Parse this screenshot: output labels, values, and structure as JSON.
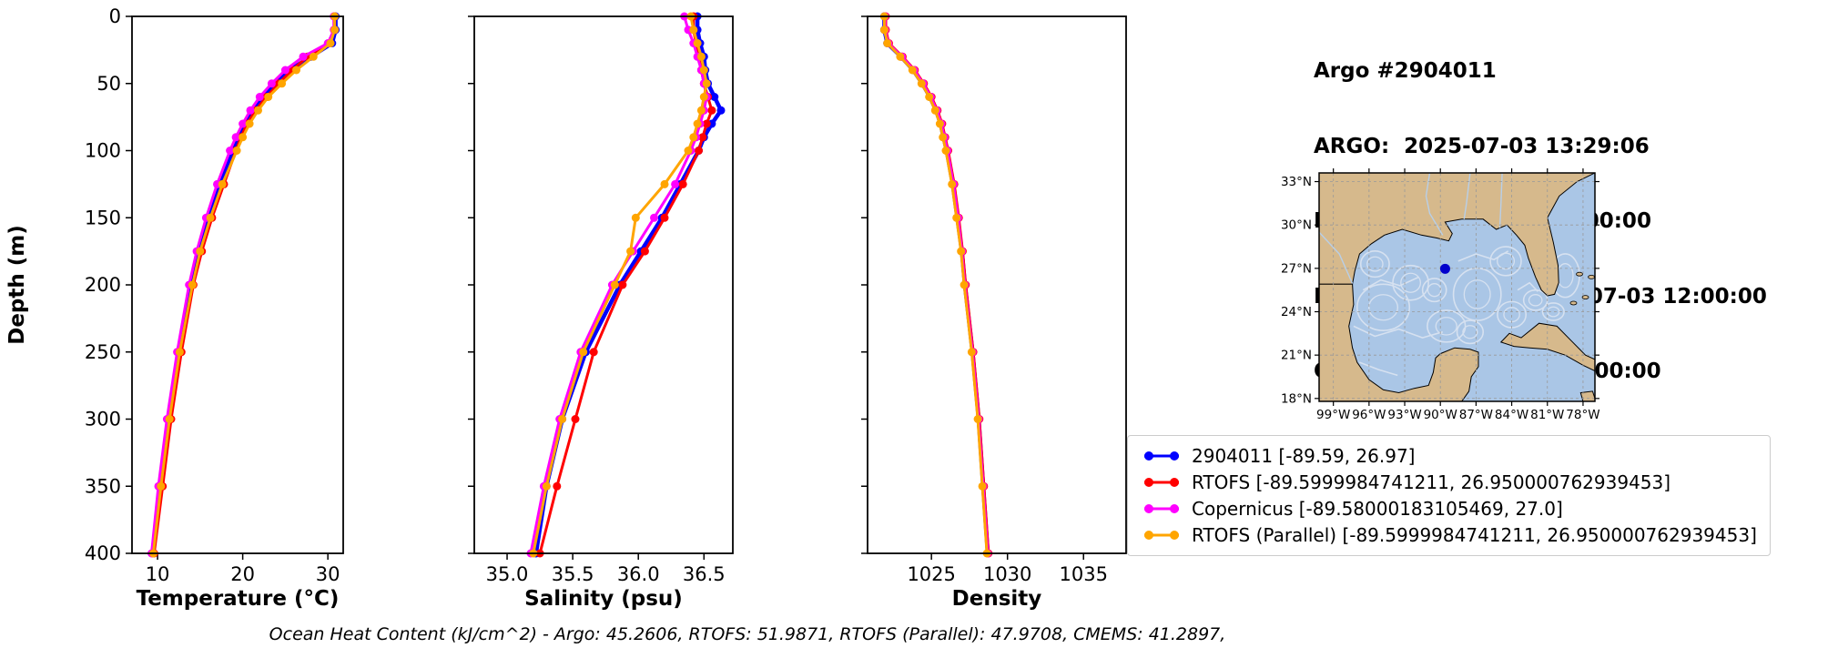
{
  "header": {
    "title": "Argo #2904011",
    "lines": [
      "ARGO:  2025-07-03 13:29:06",
      "RTOFS: 2025-07-03 12:00:00",
      "RTOFS (Parallel): 2025-07-03 12:00:00",
      "CMEMS: 2025-07-03 12:00:00"
    ]
  },
  "caption": "Ocean Heat Content (kJ/cm^2) - Argo: 45.2606,  RTOFS: 51.9871,  RTOFS (Parallel): 47.9708,  CMEMS: 41.2897,",
  "legend": {
    "entries": [
      {
        "label": "2904011 [-89.59, 26.97]",
        "color": "#0000ff"
      },
      {
        "label": "RTOFS [-89.5999984741211, 26.950000762939453]",
        "color": "#ff0000"
      },
      {
        "label": "Copernicus [-89.58000183105469, 27.0]",
        "color": "#ff00ff"
      },
      {
        "label": "RTOFS (Parallel) [-89.5999984741211, 26.950000762939453]",
        "color": "#ffa500"
      }
    ]
  },
  "map": {
    "lat_tick_labels": [
      "33°N",
      "30°N",
      "27°N",
      "24°N",
      "21°N",
      "18°N"
    ],
    "lat_tick_values": [
      33,
      30,
      27,
      24,
      21,
      18
    ],
    "lon_tick_labels": [
      "99°W",
      "96°W",
      "93°W",
      "90°W",
      "87°W",
      "84°W",
      "81°W",
      "78°W"
    ],
    "lon_tick_values": [
      -99,
      -96,
      -93,
      -90,
      -87,
      -84,
      -81,
      -78
    ],
    "lon_range": [
      -100.2,
      -77.0
    ],
    "lat_range": [
      17.8,
      33.6
    ],
    "float_position": {
      "lon": -89.6,
      "lat": 26.97
    },
    "water_color": "#aac6e6",
    "land_color": "#d6b98c",
    "streamline_color": "#d6e1f0",
    "dot_color": "#0000cc"
  },
  "chart_data": [
    {
      "type": "line",
      "xlabel": "Temperature (°C)",
      "ylabel": "Depth (m)",
      "xlim": [
        7,
        31.8
      ],
      "ylim": [
        0,
        400
      ],
      "xticks": [
        10,
        20,
        30
      ],
      "xtick_labels": [
        "10",
        "20",
        "30"
      ],
      "yticks": [
        0,
        50,
        100,
        150,
        200,
        250,
        300,
        350,
        400
      ],
      "depths": [
        0,
        10,
        20,
        30,
        40,
        50,
        60,
        70,
        80,
        90,
        100,
        125,
        150,
        175,
        200,
        250,
        300,
        350,
        400
      ],
      "series": [
        {
          "name": "2904011",
          "color": "#0000ff",
          "lw": 4.5,
          "values": [
            30.9,
            30.9,
            30.5,
            28.0,
            25.5,
            23.8,
            22.3,
            21.2,
            20.2,
            19.5,
            18.8,
            17.3,
            16.0,
            14.9,
            14.0,
            12.5,
            11.3,
            10.3,
            9.4
          ]
        },
        {
          "name": "RTOFS",
          "color": "#ff0000",
          "lw": 3,
          "values": [
            30.8,
            30.8,
            30.2,
            27.6,
            25.8,
            24.2,
            22.8,
            21.5,
            20.5,
            19.8,
            19.2,
            17.8,
            16.4,
            15.2,
            14.2,
            12.8,
            11.6,
            10.6,
            9.6
          ]
        },
        {
          "name": "Copernicus",
          "color": "#ff00ff",
          "lw": 3,
          "values": [
            30.7,
            30.7,
            30.0,
            27.1,
            25.0,
            23.4,
            22.0,
            20.9,
            20.0,
            19.2,
            18.5,
            17.0,
            15.7,
            14.6,
            13.7,
            12.3,
            11.1,
            10.1,
            9.3
          ]
        },
        {
          "name": "RTOFS (Parallel)",
          "color": "#ffa500",
          "lw": 3,
          "values": [
            30.8,
            30.8,
            30.3,
            28.3,
            26.3,
            24.6,
            23.0,
            21.8,
            20.8,
            20.0,
            19.3,
            17.6,
            16.2,
            15.0,
            14.1,
            12.6,
            11.4,
            10.4,
            9.5
          ]
        }
      ]
    },
    {
      "type": "line",
      "xlabel": "Salinity (psu)",
      "ylabel": "Depth (m)",
      "xlim": [
        34.75,
        36.72
      ],
      "ylim": [
        0,
        400
      ],
      "xticks": [
        35.0,
        35.5,
        36.0,
        36.5
      ],
      "xtick_labels": [
        "35.0",
        "35.5",
        "36.0",
        "36.5"
      ],
      "yticks": [
        0,
        50,
        100,
        150,
        200,
        250,
        300,
        350,
        400
      ],
      "depths": [
        0,
        10,
        20,
        30,
        40,
        50,
        60,
        70,
        80,
        90,
        100,
        125,
        150,
        175,
        200,
        250,
        300,
        350,
        400
      ],
      "series": [
        {
          "name": "2904011",
          "color": "#0000ff",
          "lw": 4.5,
          "values": [
            36.45,
            36.45,
            36.47,
            36.5,
            36.51,
            36.53,
            36.58,
            36.63,
            36.56,
            36.5,
            36.46,
            36.32,
            36.18,
            36.02,
            35.86,
            35.6,
            35.42,
            35.3,
            35.22
          ]
        },
        {
          "name": "RTOFS",
          "color": "#ff0000",
          "lw": 3,
          "values": [
            36.42,
            36.42,
            36.44,
            36.46,
            36.48,
            36.5,
            36.53,
            36.56,
            36.52,
            36.49,
            36.46,
            36.34,
            36.2,
            36.05,
            35.88,
            35.66,
            35.52,
            35.38,
            35.25
          ]
        },
        {
          "name": "Copernicus",
          "color": "#ff00ff",
          "lw": 3,
          "values": [
            36.35,
            36.38,
            36.42,
            36.45,
            36.48,
            36.5,
            36.52,
            36.5,
            36.47,
            36.44,
            36.4,
            36.28,
            36.12,
            35.96,
            35.8,
            35.56,
            35.4,
            35.28,
            35.18
          ]
        },
        {
          "name": "RTOFS (Parallel)",
          "color": "#ffa500",
          "lw": 3,
          "values": [
            36.4,
            36.42,
            36.45,
            36.48,
            36.5,
            36.52,
            36.5,
            36.48,
            36.45,
            36.42,
            36.38,
            36.2,
            35.98,
            35.94,
            35.82,
            35.58,
            35.42,
            35.3,
            35.2
          ]
        }
      ]
    },
    {
      "type": "line",
      "xlabel": "Density",
      "ylabel": "Depth (m)",
      "xlim": [
        1020.8,
        1037.8
      ],
      "ylim": [
        0,
        400
      ],
      "xticks": [
        1025,
        1030,
        1035
      ],
      "xtick_labels": [
        "1025",
        "1030",
        "1035"
      ],
      "yticks": [
        0,
        50,
        100,
        150,
        200,
        250,
        300,
        350,
        400
      ],
      "depths": [
        0,
        10,
        20,
        30,
        40,
        50,
        60,
        70,
        80,
        90,
        100,
        125,
        150,
        175,
        200,
        250,
        300,
        350,
        400
      ],
      "series": [
        {
          "name": "2904011",
          "color": "#0000ff",
          "lw": 4.5,
          "values": [
            1021.9,
            1021.9,
            1022.1,
            1023.0,
            1023.8,
            1024.4,
            1024.9,
            1025.3,
            1025.6,
            1025.8,
            1026.0,
            1026.4,
            1026.7,
            1027.0,
            1027.2,
            1027.7,
            1028.1,
            1028.4,
            1028.7
          ]
        },
        {
          "name": "RTOFS",
          "color": "#ff0000",
          "lw": 3,
          "values": [
            1022.0,
            1022.0,
            1022.2,
            1023.1,
            1023.9,
            1024.5,
            1025.0,
            1025.4,
            1025.7,
            1025.9,
            1026.1,
            1026.5,
            1026.8,
            1027.05,
            1027.25,
            1027.75,
            1028.15,
            1028.45,
            1028.75
          ]
        },
        {
          "name": "Copernicus",
          "color": "#ff00ff",
          "lw": 3,
          "values": [
            1021.95,
            1021.95,
            1022.15,
            1023.05,
            1023.85,
            1024.45,
            1024.95,
            1025.35,
            1025.65,
            1025.85,
            1026.05,
            1026.45,
            1026.75,
            1027.0,
            1027.2,
            1027.7,
            1028.1,
            1028.4,
            1028.7
          ]
        },
        {
          "name": "RTOFS (Parallel)",
          "color": "#ffa500",
          "lw": 3,
          "values": [
            1021.9,
            1021.9,
            1022.1,
            1022.95,
            1023.75,
            1024.35,
            1024.85,
            1025.25,
            1025.55,
            1025.75,
            1025.95,
            1026.35,
            1026.65,
            1026.95,
            1027.15,
            1027.65,
            1028.05,
            1028.35,
            1028.65
          ]
        }
      ]
    }
  ]
}
